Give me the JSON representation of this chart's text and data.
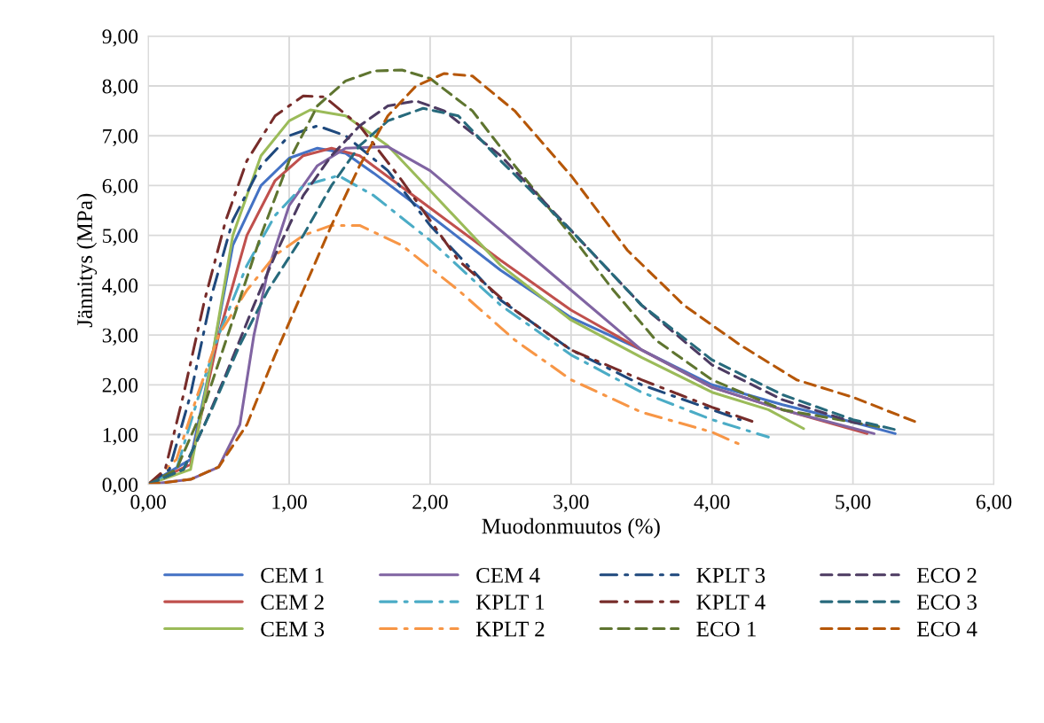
{
  "chart_data": {
    "type": "line",
    "xlabel": "Muodonmuutos (%)",
    "ylabel": "Jännitys (MPa)",
    "xlim": [
      0,
      6
    ],
    "ylim": [
      0,
      9
    ],
    "xticks": [
      {
        "value": 0,
        "label": "0,00"
      },
      {
        "value": 1,
        "label": "1,00"
      },
      {
        "value": 2,
        "label": "2,00"
      },
      {
        "value": 3,
        "label": "3,00"
      },
      {
        "value": 4,
        "label": "4,00"
      },
      {
        "value": 5,
        "label": "5,00"
      },
      {
        "value": 6,
        "label": "6,00"
      }
    ],
    "yticks": [
      {
        "value": 0,
        "label": "0,00"
      },
      {
        "value": 1,
        "label": "1,00"
      },
      {
        "value": 2,
        "label": "2,00"
      },
      {
        "value": 3,
        "label": "3,00"
      },
      {
        "value": 4,
        "label": "4,00"
      },
      {
        "value": 5,
        "label": "5,00"
      },
      {
        "value": 6,
        "label": "6,00"
      },
      {
        "value": 7,
        "label": "7,00"
      },
      {
        "value": 8,
        "label": "8,00"
      },
      {
        "value": 9,
        "label": "9,00"
      }
    ],
    "grid": true,
    "legend": "bottom",
    "marker": "none",
    "series": [
      {
        "name": "CEM 1",
        "color": "#4472c4",
        "line_style": "solid",
        "x": [
          0,
          0.3,
          0.45,
          0.6,
          0.8,
          1.0,
          1.2,
          1.4,
          1.6,
          2.0,
          2.5,
          3.0,
          3.5,
          4.0,
          4.5,
          5.0,
          5.3
        ],
        "values": [
          0,
          0.5,
          2.5,
          4.8,
          6.0,
          6.55,
          6.75,
          6.65,
          6.25,
          5.4,
          4.3,
          3.35,
          2.7,
          2.0,
          1.6,
          1.25,
          1.02
        ]
      },
      {
        "name": "CEM 2",
        "color": "#c0504d",
        "line_style": "solid",
        "x": [
          0,
          0.3,
          0.5,
          0.7,
          0.9,
          1.1,
          1.3,
          1.5,
          2.0,
          2.5,
          3.0,
          3.5,
          4.0,
          4.5,
          5.1
        ],
        "values": [
          0,
          0.4,
          3.0,
          5.0,
          6.1,
          6.6,
          6.75,
          6.6,
          5.55,
          4.5,
          3.5,
          2.7,
          1.95,
          1.5,
          1.02
        ]
      },
      {
        "name": "CEM 3",
        "color": "#9bbb59",
        "line_style": "solid",
        "x": [
          0,
          0.3,
          0.45,
          0.6,
          0.8,
          1.0,
          1.15,
          1.4,
          1.7,
          2.0,
          2.5,
          3.0,
          3.5,
          4.0,
          4.4,
          4.65
        ],
        "values": [
          0,
          0.3,
          2.5,
          5.0,
          6.6,
          7.3,
          7.52,
          7.4,
          6.8,
          5.9,
          4.4,
          3.3,
          2.55,
          1.85,
          1.5,
          1.12
        ]
      },
      {
        "name": "CEM 4",
        "color": "#8064a2",
        "line_style": "solid",
        "x": [
          0,
          0.3,
          0.5,
          0.65,
          0.75,
          0.85,
          1.0,
          1.2,
          1.4,
          1.7,
          2.0,
          2.5,
          3.0,
          3.5,
          4.0,
          4.5,
          5.15
        ],
        "values": [
          0,
          0.1,
          0.35,
          1.2,
          3.0,
          4.3,
          5.6,
          6.4,
          6.75,
          6.78,
          6.3,
          5.1,
          3.9,
          2.7,
          1.95,
          1.5,
          1.02
        ]
      },
      {
        "name": "KPLT 1",
        "color": "#4bacc6",
        "line_style": "dashdot",
        "x": [
          0,
          0.2,
          0.35,
          0.5,
          0.7,
          0.9,
          1.1,
          1.35,
          1.6,
          2.0,
          2.5,
          3.0,
          3.5,
          4.0,
          4.4
        ],
        "values": [
          0,
          0.3,
          1.7,
          3.0,
          4.4,
          5.4,
          6.0,
          6.2,
          5.8,
          4.9,
          3.6,
          2.6,
          1.85,
          1.3,
          0.95
        ]
      },
      {
        "name": "KPLT 2",
        "color": "#f79646",
        "line_style": "dashdot",
        "x": [
          0,
          0.2,
          0.35,
          0.5,
          0.7,
          0.9,
          1.1,
          1.3,
          1.5,
          1.8,
          2.2,
          2.6,
          3.0,
          3.5,
          4.0,
          4.2
        ],
        "values": [
          0,
          0.5,
          1.8,
          3.0,
          3.9,
          4.6,
          5.0,
          5.2,
          5.2,
          4.8,
          3.9,
          2.9,
          2.1,
          1.45,
          1.05,
          0.8
        ]
      },
      {
        "name": "KPLT 3",
        "color": "#1f497d",
        "line_style": "dashdot",
        "x": [
          0,
          0.15,
          0.3,
          0.45,
          0.6,
          0.8,
          1.0,
          1.2,
          1.4,
          1.7,
          2.0,
          2.5,
          3.0,
          3.5,
          4.0,
          4.2
        ],
        "values": [
          0,
          0.3,
          1.8,
          3.8,
          5.3,
          6.4,
          7.0,
          7.2,
          7.0,
          6.3,
          5.2,
          3.7,
          2.7,
          2.0,
          1.5,
          1.3
        ]
      },
      {
        "name": "KPLT 4",
        "color": "#772c2a",
        "line_style": "dashdot",
        "x": [
          0,
          0.12,
          0.25,
          0.4,
          0.55,
          0.7,
          0.9,
          1.1,
          1.25,
          1.5,
          1.8,
          2.2,
          2.6,
          3.0,
          3.5,
          4.0,
          4.3
        ],
        "values": [
          0,
          0.3,
          1.8,
          3.7,
          5.3,
          6.5,
          7.4,
          7.8,
          7.78,
          7.2,
          6.1,
          4.5,
          3.5,
          2.7,
          2.1,
          1.55,
          1.25
        ]
      },
      {
        "name": "ECO 1",
        "color": "#5f7530",
        "line_style": "dashed",
        "x": [
          0,
          0.2,
          0.4,
          0.6,
          0.8,
          1.0,
          1.2,
          1.4,
          1.6,
          1.8,
          2.0,
          2.3,
          2.6,
          3.0,
          3.3,
          3.6,
          4.0,
          4.5,
          5.0,
          5.2
        ],
        "values": [
          0,
          0.3,
          1.6,
          3.3,
          5.0,
          6.5,
          7.6,
          8.1,
          8.3,
          8.32,
          8.15,
          7.5,
          6.4,
          5.0,
          3.9,
          2.9,
          2.1,
          1.5,
          1.25,
          1.15
        ]
      },
      {
        "name": "ECO 2",
        "color": "#4d3b62",
        "line_style": "dashed",
        "x": [
          0,
          0.25,
          0.4,
          0.55,
          0.75,
          0.9,
          1.1,
          1.3,
          1.5,
          1.7,
          1.9,
          2.1,
          2.5,
          3.0,
          3.5,
          4.0,
          4.5,
          5.0,
          5.1
        ],
        "values": [
          0,
          0.3,
          1.2,
          2.2,
          3.6,
          4.6,
          5.8,
          6.6,
          7.2,
          7.6,
          7.7,
          7.5,
          6.6,
          5.1,
          3.6,
          2.4,
          1.7,
          1.25,
          1.2
        ]
      },
      {
        "name": "ECO 3",
        "color": "#276a7c",
        "line_style": "dashed",
        "x": [
          0,
          0.25,
          0.45,
          0.65,
          0.85,
          1.1,
          1.3,
          1.5,
          1.7,
          1.95,
          2.2,
          2.5,
          3.0,
          3.5,
          4.0,
          4.5,
          5.0,
          5.3
        ],
        "values": [
          0,
          0.3,
          1.5,
          2.8,
          3.9,
          5.0,
          6.0,
          6.8,
          7.3,
          7.55,
          7.4,
          6.5,
          5.1,
          3.6,
          2.5,
          1.8,
          1.3,
          1.1
        ]
      },
      {
        "name": "ECO 4",
        "color": "#b65708",
        "line_style": "dashed",
        "x": [
          0,
          0.3,
          0.5,
          0.7,
          0.9,
          1.1,
          1.3,
          1.5,
          1.7,
          1.9,
          2.1,
          2.3,
          2.6,
          3.0,
          3.4,
          3.8,
          4.2,
          4.6,
          5.0,
          5.45
        ],
        "values": [
          0,
          0.1,
          0.35,
          1.2,
          2.6,
          3.9,
          5.2,
          6.4,
          7.4,
          8.0,
          8.25,
          8.2,
          7.5,
          6.2,
          4.7,
          3.6,
          2.8,
          2.1,
          1.75,
          1.25
        ]
      }
    ]
  }
}
